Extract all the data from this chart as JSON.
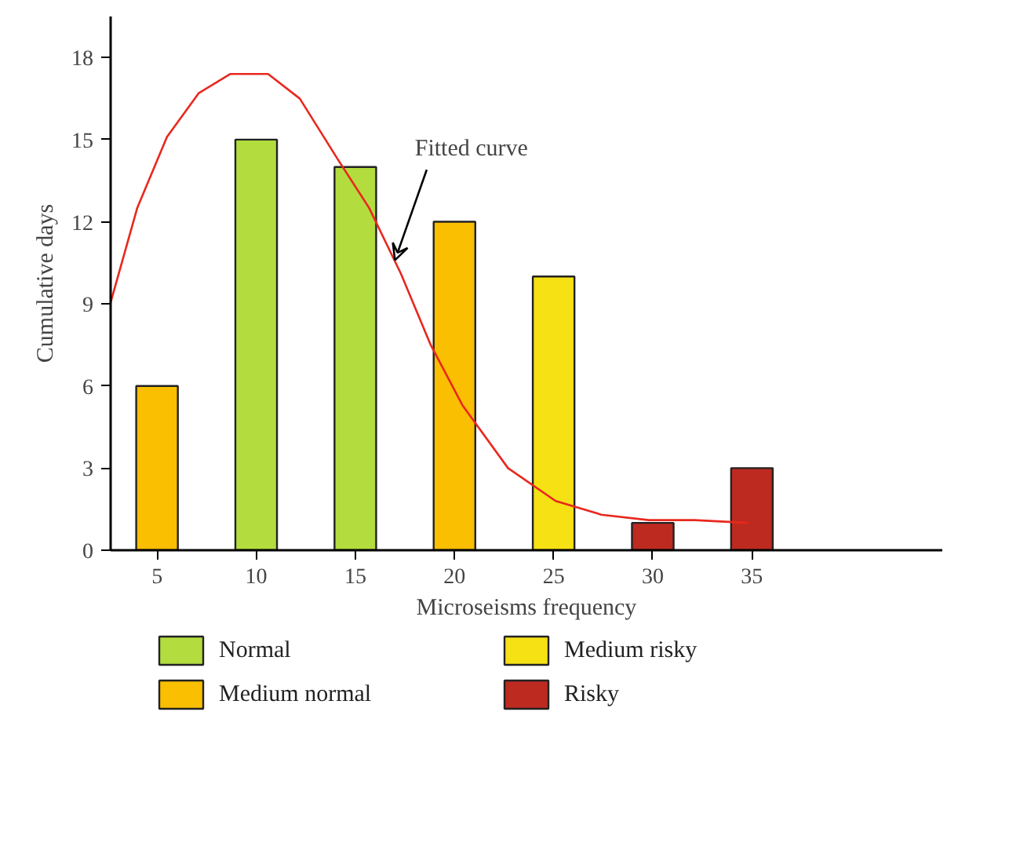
{
  "chart_data": {
    "type": "bar",
    "xlabel": "Microseisms frequency",
    "ylabel": "Cumulative days",
    "x": [
      5,
      10,
      15,
      20,
      25,
      30,
      35
    ],
    "series": [
      {
        "name": "Normal",
        "color": "#b3dc3f",
        "values": [
          null,
          15,
          14,
          null,
          null,
          null,
          null
        ]
      },
      {
        "name": "Medium normal",
        "color": "#f9bf00",
        "values": [
          6,
          null,
          null,
          12,
          null,
          null,
          null
        ]
      },
      {
        "name": "Medium risky",
        "color": "#f5e114",
        "values": [
          null,
          null,
          null,
          null,
          10,
          null,
          null
        ]
      },
      {
        "name": "Risky",
        "color": "#bd2a20",
        "values": [
          null,
          null,
          null,
          null,
          null,
          1,
          3
        ]
      },
      {
        "type": "line",
        "color": "#e8281e",
        "x": [
          2.66,
          4.0,
          5.5,
          7.1,
          8.7,
          10.6,
          12.2,
          14.1,
          15.7,
          17.3,
          18.8,
          20.4,
          22.7,
          25.1,
          27.4,
          29.8,
          32.1,
          34.8
        ],
        "values": [
          9.05,
          12.5,
          15.1,
          16.7,
          17.4,
          17.4,
          16.5,
          14.3,
          12.5,
          10.1,
          7.5,
          5.3,
          3.0,
          1.8,
          1.3,
          1.1,
          1.1,
          1.0
        ]
      }
    ],
    "xlim": [
      2.66,
      44.6
    ],
    "ylim": [
      0,
      19.5
    ],
    "xticks": [
      5,
      10,
      15,
      20,
      25,
      30,
      35
    ],
    "yticks": [
      0,
      3,
      6,
      9,
      12,
      15,
      18
    ],
    "annotations": [
      {
        "text": "Fitted curve",
        "x": 17,
        "y": 10.6
      }
    ],
    "grid": false,
    "legend": "bottom"
  }
}
